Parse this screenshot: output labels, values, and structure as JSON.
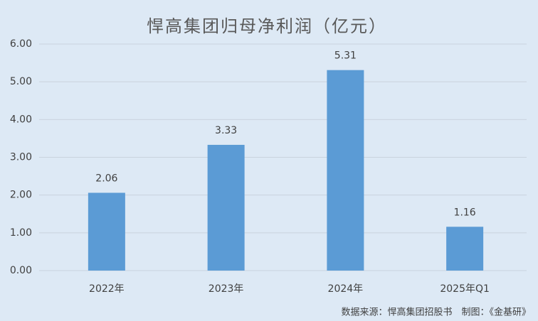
{
  "chart_data": {
    "type": "bar",
    "title": "悍高集团归母净利润（亿元）",
    "categories": [
      "2022年",
      "2023年",
      "2024年",
      "2025年Q1"
    ],
    "values": [
      2.06,
      3.33,
      5.31,
      1.16
    ],
    "color": "#5b9bd5",
    "ylim": [
      0,
      6
    ],
    "yticks": [
      {
        "value": 0,
        "label": "0.00"
      },
      {
        "value": 1,
        "label": "1.00"
      },
      {
        "value": 2,
        "label": "2.00"
      },
      {
        "value": 3,
        "label": "3.00"
      },
      {
        "value": 4,
        "label": "4.00"
      },
      {
        "value": 5,
        "label": "5.00"
      },
      {
        "value": 6,
        "label": "6.00"
      }
    ],
    "grid": true,
    "source": "数据来源：悍高集团招股书　制图：《金基研》"
  }
}
